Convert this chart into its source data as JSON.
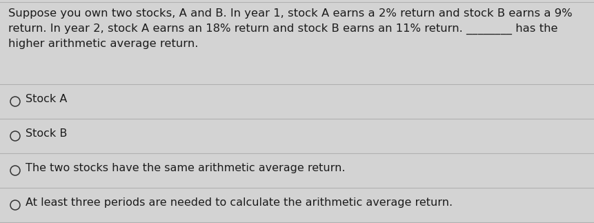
{
  "background_color": "#d3d3d3",
  "question_lines": [
    "Suppose you own two stocks, A and B. In year 1, stock A earns a 2% return and stock B earns a 9%",
    "return. In year 2, stock A earns an 18% return and stock B earns an 11% return. ________ has the",
    "higher arithmetic average return."
  ],
  "options": [
    "Stock A",
    "Stock B",
    "The two stocks have the same arithmetic average return.",
    "At least three periods are needed to calculate the arithmetic average return."
  ],
  "text_color": "#1c1c1c",
  "line_color": "#b0b0b0",
  "circle_edge_color": "#333333",
  "font_size_question": 11.8,
  "font_size_options": 11.5,
  "fig_width": 8.61,
  "fig_height": 3.23,
  "dpi": 100
}
